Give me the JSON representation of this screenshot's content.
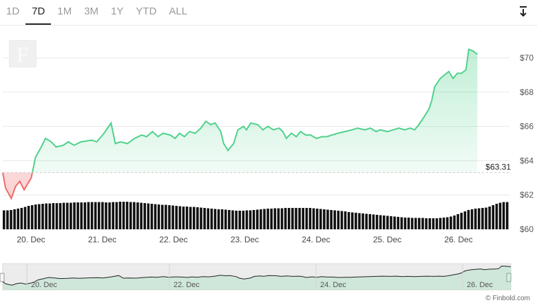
{
  "ranges": {
    "tabs": [
      "1D",
      "7D",
      "1M",
      "3M",
      "1Y",
      "YTD",
      "ALL"
    ],
    "active": "7D"
  },
  "icons": {
    "download": "download-arrow-icon",
    "logo": "finbold-logo"
  },
  "colors": {
    "up": "#4fd18b",
    "down": "#ef6a6a",
    "volume": "#111111",
    "grid": "#e7e7e7",
    "reference": "#c8c8c8"
  },
  "chart_data": {
    "type": "area",
    "title": "",
    "xlabel": "",
    "ylabel": "",
    "x_ticks": [
      "20. Dec",
      "21. Dec",
      "22. Dec",
      "23. Dec",
      "24. Dec",
      "25. Dec",
      "26. Dec"
    ],
    "x_range": [
      "2023-12-19 18:00",
      "2023-12-26 12:00"
    ],
    "y_ticks": [
      "$60",
      "$62",
      "$64",
      "$66",
      "$68",
      "$70"
    ],
    "ylim": [
      60,
      70.9
    ],
    "grid": true,
    "reference_line": {
      "value": 63.31,
      "label": "$63.31"
    },
    "series": [
      {
        "values": [
          [
            0.0,
            63.3
          ],
          [
            0.04,
            62.4
          ],
          [
            0.12,
            61.8
          ],
          [
            0.18,
            62.5
          ],
          [
            0.24,
            62.8
          ],
          [
            0.3,
            62.3
          ],
          [
            0.4,
            63.0
          ],
          [
            0.46,
            64.2
          ],
          [
            0.54,
            64.8
          ],
          [
            0.6,
            65.3
          ],
          [
            0.68,
            65.1
          ],
          [
            0.75,
            64.8
          ],
          [
            0.85,
            64.9
          ],
          [
            0.92,
            65.1
          ],
          [
            1.0,
            64.9
          ],
          [
            1.1,
            65.1
          ],
          [
            1.25,
            65.2
          ],
          [
            1.32,
            65.1
          ],
          [
            1.42,
            65.6
          ],
          [
            1.52,
            66.2
          ],
          [
            1.58,
            65.0
          ],
          [
            1.65,
            65.1
          ],
          [
            1.75,
            65.0
          ],
          [
            1.85,
            65.3
          ],
          [
            1.95,
            65.5
          ],
          [
            2.02,
            65.4
          ],
          [
            2.1,
            65.7
          ],
          [
            2.18,
            65.4
          ],
          [
            2.25,
            65.6
          ],
          [
            2.35,
            65.5
          ],
          [
            2.42,
            65.3
          ],
          [
            2.48,
            65.6
          ],
          [
            2.55,
            65.4
          ],
          [
            2.62,
            65.7
          ],
          [
            2.7,
            65.6
          ],
          [
            2.78,
            65.9
          ],
          [
            2.85,
            66.3
          ],
          [
            2.92,
            66.1
          ],
          [
            2.98,
            66.2
          ],
          [
            3.06,
            65.7
          ],
          [
            3.1,
            65.0
          ],
          [
            3.16,
            64.6
          ],
          [
            3.24,
            65.0
          ],
          [
            3.3,
            65.8
          ],
          [
            3.38,
            66.0
          ],
          [
            3.42,
            65.8
          ],
          [
            3.48,
            66.2
          ],
          [
            3.58,
            66.1
          ],
          [
            3.65,
            65.8
          ],
          [
            3.72,
            66.0
          ],
          [
            3.8,
            65.8
          ],
          [
            3.88,
            65.9
          ],
          [
            3.93,
            65.7
          ],
          [
            3.98,
            65.3
          ],
          [
            4.05,
            65.6
          ],
          [
            4.12,
            65.4
          ],
          [
            4.18,
            65.7
          ],
          [
            4.25,
            65.5
          ],
          [
            4.32,
            65.5
          ],
          [
            4.4,
            65.3
          ],
          [
            4.48,
            65.4
          ],
          [
            4.55,
            65.4
          ],
          [
            4.62,
            65.5
          ],
          [
            4.7,
            65.6
          ],
          [
            4.8,
            65.7
          ],
          [
            4.9,
            65.8
          ],
          [
            4.98,
            65.9
          ],
          [
            5.08,
            65.8
          ],
          [
            5.16,
            65.9
          ],
          [
            5.24,
            65.7
          ],
          [
            5.3,
            65.8
          ],
          [
            5.4,
            65.7
          ],
          [
            5.48,
            65.8
          ],
          [
            5.56,
            65.9
          ],
          [
            5.64,
            65.8
          ],
          [
            5.72,
            65.9
          ],
          [
            5.78,
            65.8
          ],
          [
            5.84,
            66.1
          ],
          [
            5.92,
            66.6
          ],
          [
            5.98,
            67.0
          ],
          [
            6.02,
            67.5
          ],
          [
            6.06,
            68.3
          ],
          [
            6.14,
            68.8
          ],
          [
            6.2,
            69.0
          ],
          [
            6.26,
            69.2
          ],
          [
            6.32,
            68.8
          ],
          [
            6.38,
            69.1
          ],
          [
            6.44,
            69.1
          ],
          [
            6.5,
            69.3
          ],
          [
            6.54,
            70.5
          ],
          [
            6.6,
            70.4
          ],
          [
            6.66,
            70.2
          ]
        ]
      }
    ],
    "volume": {
      "values": [
        0.55,
        0.55,
        0.56,
        0.58,
        0.6,
        0.62,
        0.65,
        0.68,
        0.7,
        0.72,
        0.73,
        0.74,
        0.75,
        0.75,
        0.76,
        0.76,
        0.76,
        0.77,
        0.77,
        0.77,
        0.78,
        0.78,
        0.78,
        0.78,
        0.79,
        0.79,
        0.79,
        0.79,
        0.79,
        0.78,
        0.78,
        0.79,
        0.79,
        0.8,
        0.8,
        0.8,
        0.79,
        0.79,
        0.78,
        0.77,
        0.76,
        0.75,
        0.74,
        0.73,
        0.72,
        0.71,
        0.71,
        0.7,
        0.69,
        0.68,
        0.67,
        0.66,
        0.66,
        0.65,
        0.65,
        0.64,
        0.63,
        0.62,
        0.61,
        0.6,
        0.59,
        0.58,
        0.58,
        0.57,
        0.56,
        0.55,
        0.54,
        0.54,
        0.54,
        0.55,
        0.55,
        0.56,
        0.57,
        0.58,
        0.59,
        0.6,
        0.6,
        0.61,
        0.61,
        0.61,
        0.62,
        0.62,
        0.62,
        0.62,
        0.62,
        0.62,
        0.62,
        0.62,
        0.61,
        0.6,
        0.59,
        0.58,
        0.57,
        0.56,
        0.55,
        0.54,
        0.53,
        0.52,
        0.5,
        0.49,
        0.48,
        0.47,
        0.46,
        0.45,
        0.44,
        0.43,
        0.42,
        0.41,
        0.4,
        0.39,
        0.38,
        0.37,
        0.36,
        0.35,
        0.34,
        0.34,
        0.33,
        0.33,
        0.33,
        0.33,
        0.32,
        0.32,
        0.32,
        0.32,
        0.33,
        0.34,
        0.35,
        0.37,
        0.4,
        0.44,
        0.48,
        0.52,
        0.56,
        0.58,
        0.6,
        0.61,
        0.62,
        0.63,
        0.66,
        0.7,
        0.74,
        0.77,
        0.79,
        0.79
      ]
    }
  },
  "navigator": {
    "labels": [
      "20. Dec",
      "22. Dec",
      "24. Dec",
      "26. Dec"
    ]
  },
  "credit": "© Finbold.com"
}
